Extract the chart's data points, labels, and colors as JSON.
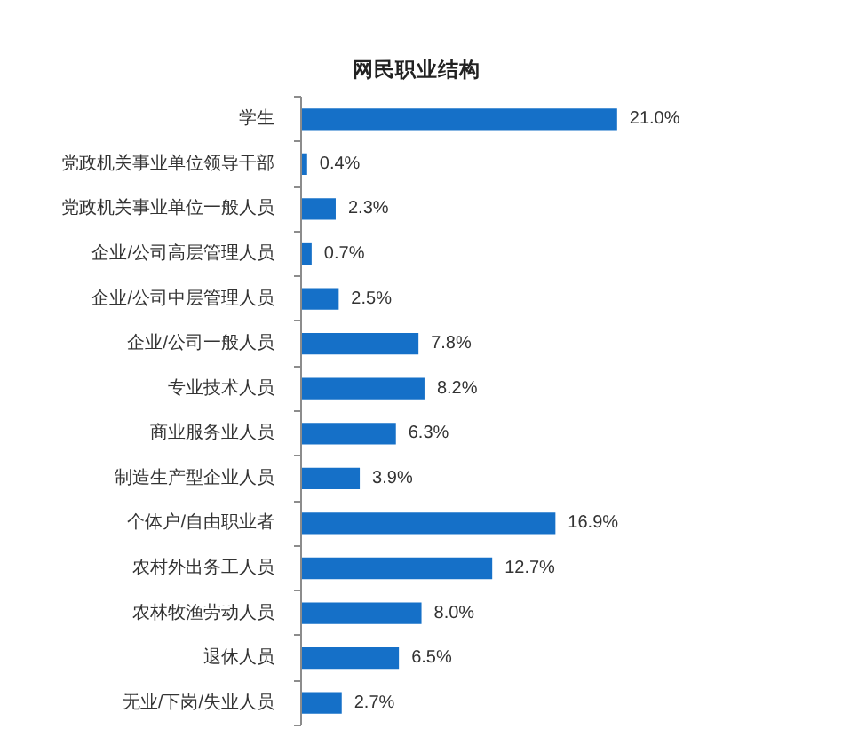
{
  "chart_data": {
    "type": "bar",
    "orientation": "horizontal",
    "title": "网民职业结构",
    "categories": [
      "学生",
      "党政机关事业单位领导干部",
      "党政机关事业单位一般人员",
      "企业/公司高层管理人员",
      "企业/公司中层管理人员",
      "企业/公司一般人员",
      "专业技术人员",
      "商业服务业人员",
      "制造生产型企业人员",
      "个体户/自由职业者",
      "农村外出务工人员",
      "农林牧渔劳动人员",
      "退休人员",
      "无业/下岗/失业人员"
    ],
    "values": [
      21.0,
      0.4,
      2.3,
      0.7,
      2.5,
      7.8,
      8.2,
      6.3,
      3.9,
      16.9,
      12.7,
      8.0,
      6.5,
      2.7
    ],
    "value_labels": [
      "21.0%",
      "0.4%",
      "2.3%",
      "0.7%",
      "2.5%",
      "7.8%",
      "8.2%",
      "6.3%",
      "3.9%",
      "16.9%",
      "12.7%",
      "8.0%",
      "6.5%",
      "2.7%"
    ],
    "color": "#1570c8"
  }
}
